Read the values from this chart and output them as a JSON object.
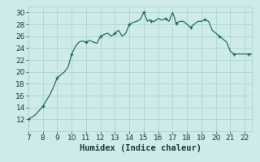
{
  "x": [
    7.0,
    7.2,
    7.5,
    7.75,
    8.0,
    8.25,
    8.5,
    8.75,
    9.0,
    9.25,
    9.5,
    9.75,
    10.0,
    10.25,
    10.5,
    10.75,
    11.0,
    11.25,
    11.5,
    11.75,
    12.0,
    12.25,
    12.5,
    12.75,
    13.0,
    13.25,
    13.5,
    13.75,
    14.0,
    14.25,
    14.5,
    14.75,
    15.0,
    15.1,
    15.25,
    15.4,
    15.5,
    15.75,
    16.0,
    16.25,
    16.5,
    16.75,
    17.0,
    17.1,
    17.25,
    17.5,
    17.75,
    18.0,
    18.25,
    18.5,
    18.75,
    19.0,
    19.25,
    19.5,
    19.75,
    20.0,
    20.25,
    20.5,
    20.75,
    21.0,
    21.25,
    21.5,
    21.75,
    22.0,
    22.25,
    22.5
  ],
  "y": [
    12.0,
    12.3,
    12.8,
    13.5,
    14.2,
    15.2,
    16.2,
    17.5,
    19.0,
    19.5,
    20.0,
    20.8,
    23.0,
    24.2,
    25.0,
    25.2,
    25.0,
    25.3,
    25.0,
    24.8,
    26.0,
    26.3,
    26.5,
    26.0,
    26.5,
    27.0,
    26.0,
    26.5,
    28.0,
    28.3,
    28.5,
    28.8,
    30.0,
    29.5,
    28.5,
    28.8,
    28.5,
    28.5,
    29.0,
    28.7,
    29.0,
    28.5,
    30.0,
    29.3,
    28.2,
    28.5,
    28.5,
    28.0,
    27.5,
    28.0,
    28.5,
    28.5,
    28.8,
    28.5,
    27.0,
    26.5,
    26.0,
    25.5,
    25.0,
    23.5,
    23.0,
    23.0,
    23.0,
    23.0,
    23.0,
    23.0
  ],
  "xlim": [
    7,
    22.5
  ],
  "ylim": [
    10,
    31
  ],
  "xticks": [
    7,
    8,
    9,
    10,
    11,
    12,
    13,
    14,
    15,
    16,
    17,
    18,
    19,
    20,
    21,
    22
  ],
  "yticks": [
    12,
    14,
    16,
    18,
    20,
    22,
    24,
    26,
    28,
    30
  ],
  "xlabel": "Humidex (Indice chaleur)",
  "line_color": "#1a6b5a",
  "bg_color": "#ceeaea",
  "grid_color": "#aacfcf",
  "tick_color": "#1a3a3a",
  "tick_fontsize": 6.5,
  "label_fontsize": 7.5
}
